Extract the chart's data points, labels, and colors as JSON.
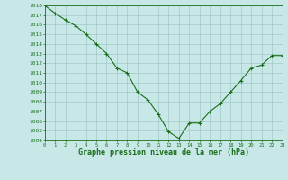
{
  "x": [
    0,
    1,
    2,
    3,
    4,
    5,
    6,
    7,
    8,
    9,
    10,
    11,
    12,
    13,
    14,
    15,
    16,
    17,
    18,
    19,
    20,
    21,
    22,
    23
  ],
  "y": [
    1018.0,
    1017.2,
    1016.5,
    1015.9,
    1015.0,
    1014.0,
    1013.0,
    1011.5,
    1011.0,
    1009.0,
    1008.2,
    1006.7,
    1004.9,
    1004.2,
    1005.8,
    1005.8,
    1007.0,
    1007.8,
    1009.0,
    1010.2,
    1011.5,
    1011.8,
    1012.8,
    1012.8
  ],
  "line_color": "#1a6e1a",
  "marker_color": "#1a6e1a",
  "bg_color": "#c8e8e8",
  "grid_color": "#a0c8c8",
  "xlabel": "Graphe pression niveau de la mer (hPa)",
  "xlabel_color": "#1a6e1a",
  "tick_color": "#1a6e1a",
  "ylim": [
    1004,
    1018
  ],
  "xlim": [
    0,
    23
  ],
  "yticks": [
    1004,
    1005,
    1006,
    1007,
    1008,
    1009,
    1010,
    1011,
    1012,
    1013,
    1014,
    1015,
    1016,
    1017,
    1018
  ],
  "xticks": [
    0,
    1,
    2,
    3,
    4,
    5,
    6,
    7,
    8,
    9,
    10,
    11,
    12,
    13,
    14,
    15,
    16,
    17,
    18,
    19,
    20,
    21,
    22,
    23
  ]
}
